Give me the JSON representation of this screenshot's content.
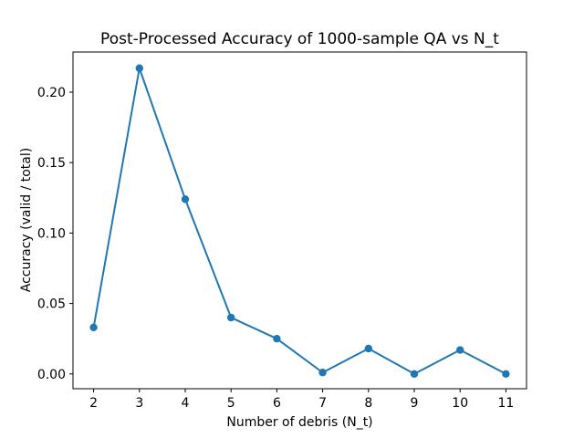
{
  "chart_data": {
    "type": "line",
    "title": "Post-Processed Accuracy of 1000-sample QA vs N_t",
    "xlabel": "Number of debris (N_t)",
    "ylabel": "Accuracy (valid / total)",
    "x": [
      2,
      3,
      4,
      5,
      6,
      7,
      8,
      9,
      10,
      11
    ],
    "y": [
      0.033,
      0.217,
      0.124,
      0.04,
      0.025,
      0.001,
      0.018,
      0.0,
      0.017,
      0.0
    ],
    "xticks": [
      2,
      3,
      4,
      5,
      6,
      7,
      8,
      9,
      10,
      11
    ],
    "xtick_labels": [
      "2",
      "3",
      "4",
      "5",
      "6",
      "7",
      "8",
      "9",
      "10",
      "11"
    ],
    "yticks": [
      0.0,
      0.05,
      0.1,
      0.15,
      0.2
    ],
    "ytick_labels": [
      "0.00",
      "0.05",
      "0.10",
      "0.15",
      "0.20"
    ],
    "xlim": [
      1.55,
      11.45
    ],
    "ylim": [
      -0.0105,
      0.2285
    ],
    "grid": false,
    "legend": null,
    "line_color": "#1f77b4",
    "marker": "o",
    "background_color": "#ffffff",
    "axis_color": "#000000"
  }
}
